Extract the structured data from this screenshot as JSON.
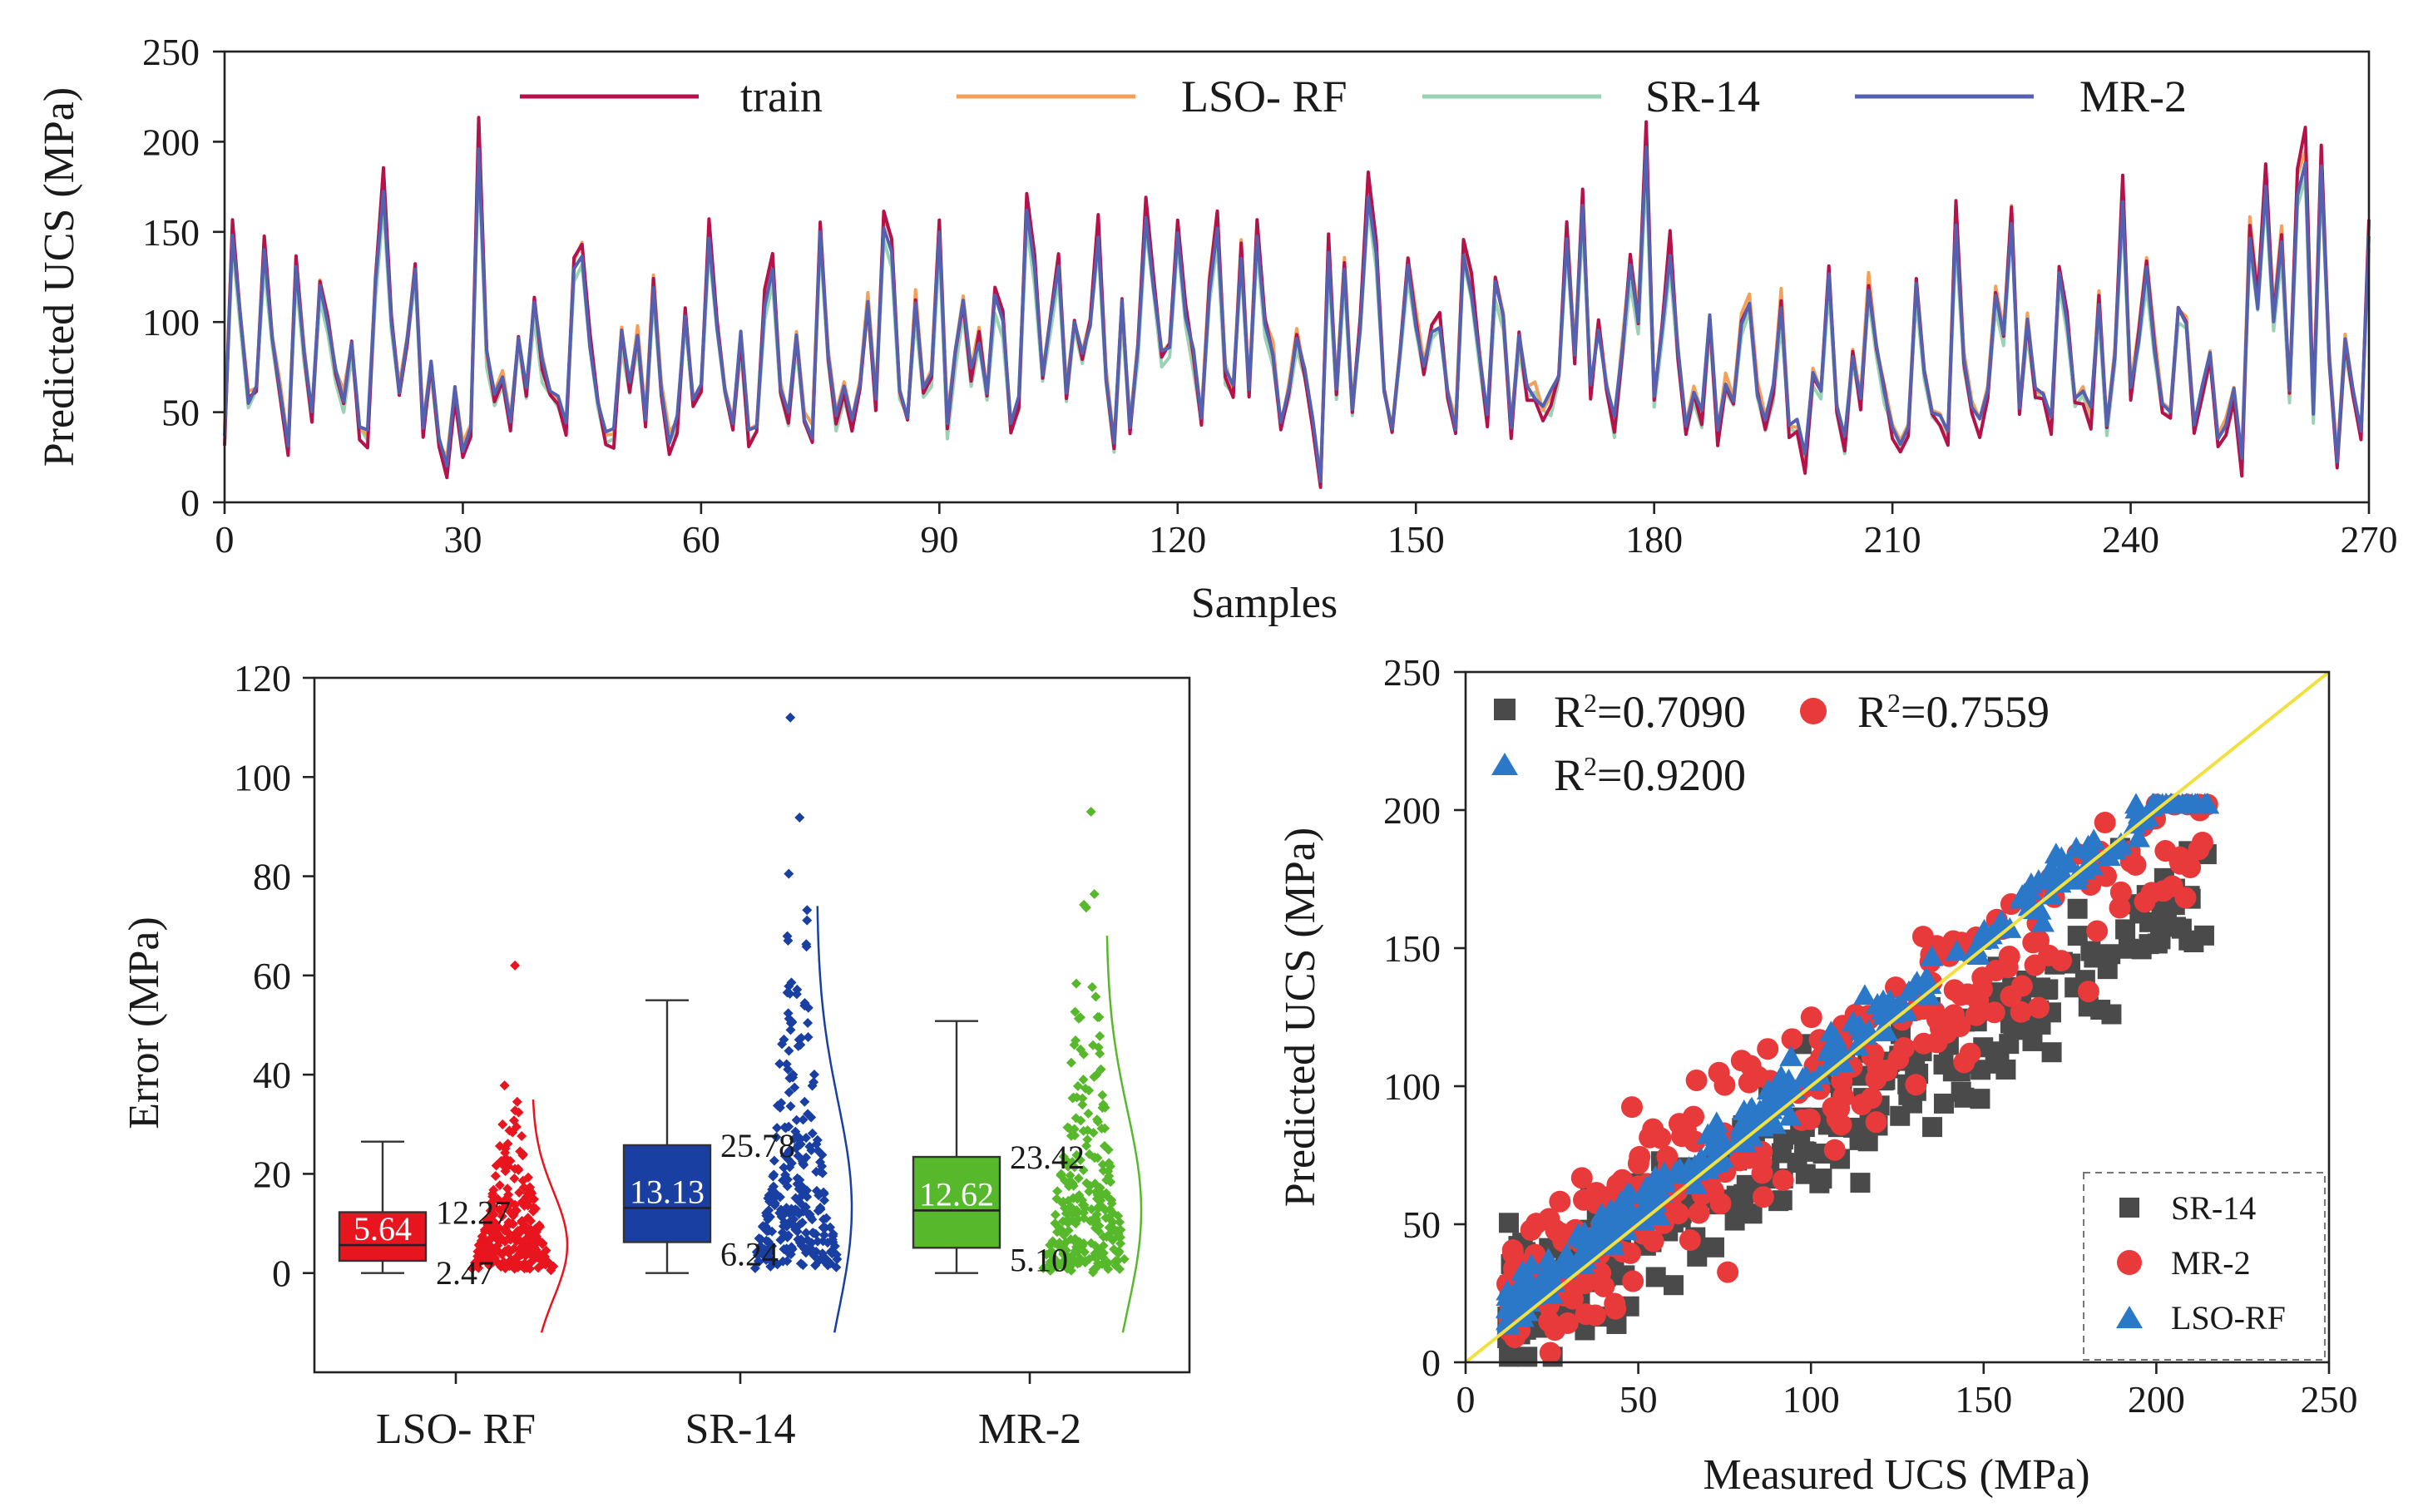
{
  "chart_data": [
    {
      "type": "line",
      "xlabel": "Samples",
      "ylabel": "Predicted UCS (MPa)",
      "xlim": [
        0,
        270
      ],
      "ylim": [
        0,
        250
      ],
      "xticks": [
        "0",
        "30",
        "60",
        "90",
        "120",
        "150",
        "180",
        "210",
        "240",
        "270"
      ],
      "yticks": [
        "0",
        "50",
        "100",
        "150",
        "200",
        "250"
      ],
      "legend_position": "top",
      "series": [
        {
          "name": "train",
          "color": "#b5114a"
        },
        {
          "name": "LSO- RF",
          "color": "#f4a05a"
        },
        {
          "name": "SR-14",
          "color": "#9ad2b4"
        },
        {
          "name": "MR-2",
          "color": "#5461b0"
        }
      ],
      "base_values": [
        35,
        150,
        100,
        55,
        62,
        140,
        90,
        60,
        30,
        130,
        80,
        45,
        120,
        100,
        70,
        55,
        88,
        40,
        35,
        120,
        175,
        100,
        60,
        90,
        130,
        40,
        75,
        30,
        20,
        60,
        25,
        40,
        200,
        80,
        55,
        70,
        40,
        90,
        60,
        110,
        75,
        60,
        55,
        40,
        130,
        140,
        90,
        55,
        35,
        35,
        90,
        60,
        90,
        45,
        120,
        60,
        30,
        40,
        105,
        55,
        60,
        150,
        100,
        60,
        40,
        90,
        35,
        40,
        110,
        130,
        60,
        45,
        90,
        45,
        35,
        150,
        80,
        45,
        60,
        40,
        65,
        110,
        55,
        155,
        140,
        60,
        45,
        110,
        60,
        70,
        150,
        40,
        80,
        110,
        70,
        90,
        60,
        115,
        100,
        40,
        55,
        160,
        130,
        70,
        100,
        130,
        60,
        100,
        80,
        100,
        150,
        70,
        30,
        110,
        40,
        85,
        160,
        120,
        80,
        85,
        150,
        105,
        80,
        45,
        120,
        155,
        70,
        60,
        140,
        60,
        150,
        100,
        80,
        40,
        60,
        90,
        70,
        45,
        10,
        140,
        60,
        130,
        50,
        100,
        175,
        140,
        60,
        40,
        80,
        130,
        100,
        70,
        95,
        100,
        60,
        40,
        140,
        120,
        80,
        45,
        120,
        100,
        40,
        90,
        60,
        60,
        50,
        55,
        70,
        150,
        80,
        165,
        60,
        100,
        65,
        40,
        85,
        130,
        100,
        200,
        55,
        95,
        140,
        80,
        40,
        60,
        45,
        100,
        35,
        65,
        55,
        100,
        110,
        60,
        45,
        60,
        110,
        40,
        40,
        20,
        70,
        60,
        125,
        50,
        30,
        80,
        55,
        120,
        85,
        60,
        40,
        30,
        40,
        120,
        70,
        50,
        45,
        35,
        160,
        80,
        50,
        40,
        60,
        115,
        90,
        160,
        50,
        100,
        60,
        60,
        40,
        125,
        100,
        55,
        60,
        45,
        110,
        40,
        80,
        170,
        60,
        90,
        130,
        85,
        50,
        50,
        105,
        100,
        40,
        60,
        80,
        35,
        40,
        60,
        20,
        150,
        110,
        180,
        100,
        145,
        60,
        175,
        195,
        50,
        190,
        80,
        20,
        90,
        60
      ],
      "peak_labels": []
    },
    {
      "type": "box",
      "xlabel": "",
      "ylabel": "Error (MPa)",
      "ylim": [
        -20,
        120
      ],
      "yticks": [
        "0",
        "20",
        "40",
        "60",
        "80",
        "100",
        "120"
      ],
      "categories": [
        "LSO- RF",
        "SR-14",
        "MR-2"
      ],
      "boxes": [
        {
          "name": "LSO- RF",
          "color": "#e8141e",
          "whisker_min": 0,
          "q1": 2.47,
          "median": 5.64,
          "q3": 12.27,
          "whisker_max": 26.5,
          "median_label": "5.64",
          "q1_label": "2.47",
          "q3_label": "12.27",
          "max_outlier": 62
        },
        {
          "name": "SR-14",
          "color": "#1a3fa2",
          "whisker_min": 0,
          "q1": 6.24,
          "median": 13.13,
          "q3": 25.78,
          "whisker_max": 55,
          "median_label": "13.13",
          "q1_label": "6.24",
          "q3_label": "25.78",
          "max_outlier": 112
        },
        {
          "name": "MR-2",
          "color": "#57b82c",
          "whisker_min": 0,
          "q1": 5.1,
          "median": 12.62,
          "q3": 23.42,
          "whisker_max": 50.8,
          "median_label": "12.62",
          "q1_label": "5.10",
          "q3_label": "23.42",
          "max_outlier": 93
        }
      ]
    },
    {
      "type": "scatter",
      "xlabel": "Measured UCS (MPa)",
      "ylabel": "Predicted UCS (MPa)",
      "xlim": [
        0,
        250
      ],
      "ylim": [
        0,
        250
      ],
      "xticks": [
        "0",
        "50",
        "100",
        "150",
        "200",
        "250"
      ],
      "yticks": [
        "0",
        "50",
        "100",
        "150",
        "200",
        "250"
      ],
      "reference_line": {
        "x": [
          0,
          250
        ],
        "y": [
          0,
          250
        ],
        "color": "#f0e040"
      },
      "r2_annotations": [
        {
          "series": "SR-14",
          "prefix": "R",
          "sup": "2",
          "text": "=0.7090"
        },
        {
          "series": "MR-2",
          "prefix": "R",
          "sup": "2",
          "text": "=0.7559"
        },
        {
          "series": "LSO-RF",
          "prefix": "R",
          "sup": "2",
          "text": "=0.9200"
        }
      ],
      "legend_position": "bottom-right",
      "series": [
        {
          "name": "SR-14",
          "color": "#4a4a4a",
          "marker": "square"
        },
        {
          "name": "MR-2",
          "color": "#e83a3a",
          "marker": "circle"
        },
        {
          "name": "LSO-RF",
          "color": "#2b78c8",
          "marker": "triangle"
        }
      ]
    }
  ]
}
